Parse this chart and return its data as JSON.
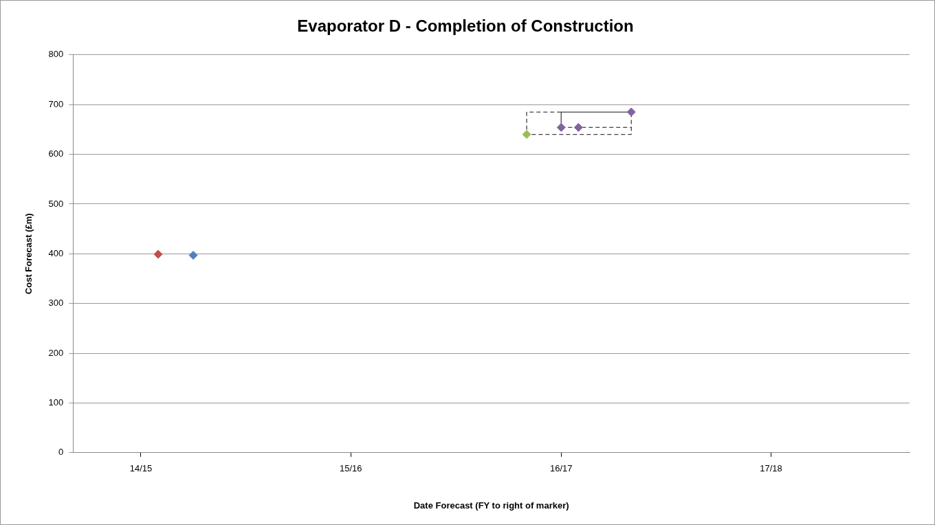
{
  "chart_data": {
    "type": "scatter",
    "title": "Evaporator D - Completion of Construction",
    "xlabel": "Date Forecast (FY to right of marker)",
    "ylabel": "Cost Forecast (£m)",
    "series": [
      {
        "color": "#c0504d",
        "x": [
          "2014-05-01"
        ],
        "values": [
          399
        ]
      },
      {
        "color": "#4f81bd",
        "x": [
          "2014-07-01"
        ],
        "values": [
          397
        ]
      },
      {
        "type": "line",
        "color": "#404040",
        "line_style": "dashed",
        "marker": "none",
        "x": [
          "2016-04-01",
          "2016-02-01",
          "2016-02-01",
          "2016-08-01",
          "2016-08-01"
        ],
        "values": [
          685,
          685,
          640,
          640,
          685
        ]
      },
      {
        "type": "line",
        "color": "#404040",
        "line_style": "solid",
        "marker": "none",
        "x": [
          "2016-04-01",
          "2016-04-01",
          "2016-08-01"
        ],
        "values": [
          654,
          685,
          685
        ]
      },
      {
        "type": "line",
        "color": "#404040",
        "line_style": "dashed",
        "marker": "none",
        "x": [
          "2016-04-01",
          "2016-08-01"
        ],
        "values": [
          654,
          654
        ]
      },
      {
        "color": "#9bbb59",
        "x": [
          "2016-02-01"
        ],
        "values": [
          640
        ]
      },
      {
        "color": "#8064a2",
        "x": [
          "2016-04-01",
          "2016-05-01",
          "2016-08-01"
        ],
        "values": [
          654,
          654,
          685
        ]
      }
    ],
    "marker": "diamond",
    "xlim": [
      "2013-12-04",
      "2017-11-28"
    ],
    "xticks": [
      {
        "value": "2014-04-01",
        "label": "14/15"
      },
      {
        "value": "2015-04-01",
        "label": "15/16"
      },
      {
        "value": "2016-04-01",
        "label": "16/17"
      },
      {
        "value": "2017-04-01",
        "label": "17/18"
      }
    ],
    "ylim": [
      0,
      800
    ],
    "yticks": [
      0,
      100,
      200,
      300,
      400,
      500,
      600,
      700,
      800
    ],
    "grid": "y",
    "legend": false
  }
}
